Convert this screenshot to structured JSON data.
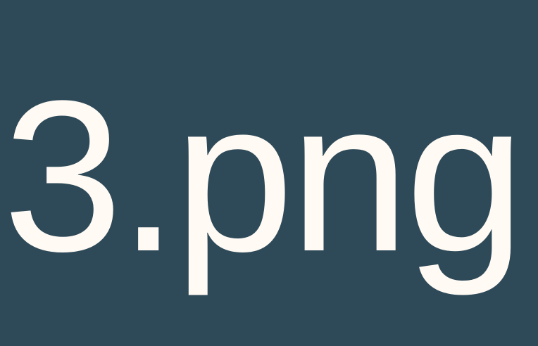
{
  "image": {
    "label": "3.png",
    "background_color": "#2e4a59",
    "text_color": "#fffaf3"
  }
}
